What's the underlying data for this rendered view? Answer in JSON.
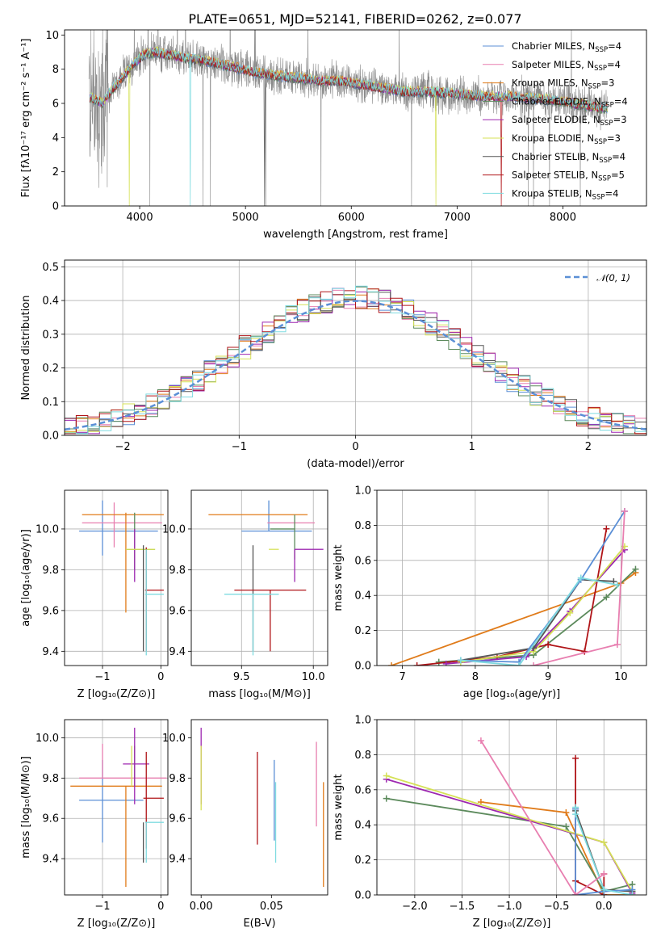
{
  "figure": {
    "title": "PLATE=0651, MJD=52141, FIBERID=0262, z=0.077"
  },
  "colors": {
    "chabrier_miles": "#5b8fd6",
    "salpeter_miles": "#e87fb0",
    "kroupa_miles": "#e07b1a",
    "chabrier_elodie": "#5c8a5c",
    "salpeter_elodie": "#9d27b0",
    "kroupa_elodie": "#d5e156",
    "chabrier_stelib": "#555555",
    "salpeter_stelib": "#b01418",
    "kroupa_stelib": "#7fdbe0",
    "data_gray": "#8a8a8a",
    "grid": "#b0b0b0",
    "normal_curve": "#5b8fd6"
  },
  "chart_data": [
    {
      "id": "spectrum",
      "type": "line",
      "title": "PLATE=0651, MJD=52141, FIBERID=0262, z=0.077",
      "xlabel": "wavelength [Angstrom, rest frame]",
      "ylabel": "Flux [fλ10⁻¹⁷ erg cm⁻² s⁻¹ A⁻¹]",
      "xlim": [
        3290,
        8790
      ],
      "ylim": [
        0,
        10.3
      ],
      "xticks": [
        4000,
        5000,
        6000,
        7000,
        8000
      ],
      "yticks": [
        0,
        2,
        4,
        6,
        8,
        10
      ],
      "grid": false,
      "legend_position": "top-right",
      "legend": [
        {
          "label": "Chabrier MILES, N",
          "sub": "SSP",
          "suffix": "=4",
          "color_key": "chabrier_miles"
        },
        {
          "label": "Salpeter MILES, N",
          "sub": "SSP",
          "suffix": "=4",
          "color_key": "salpeter_miles"
        },
        {
          "label": "Kroupa MILES, N",
          "sub": "SSP",
          "suffix": "=3",
          "color_key": "kroupa_miles"
        },
        {
          "label": "Chabrier ELODIE, N",
          "sub": "SSP",
          "suffix": "=4",
          "color_key": "chabrier_elodie"
        },
        {
          "label": "Salpeter ELODIE, N",
          "sub": "SSP",
          "suffix": "=3",
          "color_key": "salpeter_elodie"
        },
        {
          "label": "Kroupa ELODIE, N",
          "sub": "SSP",
          "suffix": "=3",
          "color_key": "kroupa_elodie"
        },
        {
          "label": "Chabrier STELIB, N",
          "sub": "SSP",
          "suffix": "=4",
          "color_key": "chabrier_stelib"
        },
        {
          "label": "Salpeter STELIB, N",
          "sub": "SSP",
          "suffix": "=5",
          "color_key": "salpeter_stelib"
        },
        {
          "label": "Kroupa STELIB, N",
          "sub": "SSP",
          "suffix": "=4",
          "color_key": "kroupa_stelib"
        }
      ],
      "model_continuum": {
        "x": [
          3550,
          3650,
          3750,
          3850,
          3950,
          4050,
          4150,
          4300,
          4500,
          4700,
          4900,
          5100,
          5300,
          5500,
          5700,
          5900,
          6100,
          6300,
          6500,
          6700,
          6900,
          7100,
          7300,
          7500,
          7700,
          7900,
          8100,
          8300,
          8420
        ],
        "y": [
          6.3,
          6.0,
          6.9,
          7.6,
          8.4,
          8.9,
          9.0,
          8.8,
          8.6,
          8.4,
          8.1,
          7.8,
          7.6,
          7.5,
          7.3,
          7.3,
          7.1,
          6.9,
          6.7,
          6.7,
          6.6,
          6.5,
          6.4,
          6.4,
          6.3,
          6.2,
          6.0,
          5.8,
          5.7
        ]
      },
      "noise_region": [
        3520,
        3700
      ]
    },
    {
      "id": "residuals",
      "type": "step",
      "xlabel": "(data-model)/error",
      "ylabel": "Normed distribution",
      "xlim": [
        -2.5,
        2.5
      ],
      "ylim": [
        0,
        0.52
      ],
      "xticks": [
        -2,
        -1,
        0,
        1,
        2
      ],
      "yticks": [
        0.0,
        0.1,
        0.2,
        0.3,
        0.4,
        0.5
      ],
      "grid": true,
      "legend_position": "top-right",
      "legend": [
        {
          "label": "𝒩(0, 1)",
          "color_key": "normal_curve",
          "style": "dashed"
        }
      ],
      "bin_width": 0.1,
      "bin_start": -2.5
    },
    {
      "id": "age_vs_z",
      "type": "errorbar",
      "xlabel": "Z [log₁₀(Z/Z⊙)]",
      "ylabel": "age  [log₁₀(age/yr)]",
      "xlim": [
        -1.65,
        0.12
      ],
      "ylim": [
        9.33,
        10.19
      ],
      "xticks": [
        -1,
        0
      ],
      "yticks": [
        9.4,
        9.6,
        9.8,
        10.0
      ],
      "grid": true,
      "points": [
        {
          "color_key": "chabrier_miles",
          "x": -1.0,
          "xerr": [
            0.4,
            0.95
          ],
          "y": 9.99,
          "yerr": [
            0.12,
            0.15
          ]
        },
        {
          "color_key": "salpeter_miles",
          "x": -0.8,
          "xerr": [
            0.55,
            0.82
          ],
          "y": 10.03,
          "yerr": [
            0.12,
            0.1
          ]
        },
        {
          "color_key": "kroupa_miles",
          "x": -0.6,
          "xerr": [
            0.75,
            0.65
          ],
          "y": 10.07,
          "yerr": [
            0.48,
            0.01
          ]
        },
        {
          "color_key": "chabrier_elodie",
          "x": -0.45,
          "xerr": [
            0.15,
            0.35
          ],
          "y": 9.9,
          "yerr": [
            0.1,
            0.18
          ]
        },
        {
          "color_key": "salpeter_elodie",
          "x": -0.45,
          "xerr": [
            0.0,
            0.0
          ],
          "y": 9.9,
          "yerr": [
            0.16,
            0.1
          ]
        },
        {
          "color_key": "kroupa_elodie",
          "x": -0.45,
          "xerr": [
            0.15,
            0.35
          ],
          "y": 9.9,
          "yerr": [
            0.0,
            0.0
          ]
        },
        {
          "color_key": "chabrier_stelib",
          "x": -0.3,
          "xerr": [
            0.0,
            0.0
          ],
          "y": 9.4,
          "yerr": [
            0.0,
            0.52
          ]
        },
        {
          "color_key": "salpeter_stelib",
          "x": -0.25,
          "xerr": [
            0.02,
            0.3
          ],
          "y": 9.7,
          "yerr": [
            0.3,
            0.21
          ]
        },
        {
          "color_key": "kroupa_stelib",
          "x": -0.25,
          "xerr": [
            0.02,
            0.3
          ],
          "y": 9.68,
          "yerr": [
            0.3,
            0.22
          ]
        }
      ]
    },
    {
      "id": "age_vs_mass",
      "type": "errorbar",
      "xlabel": "mass [log₁₀(M/M⊙)]",
      "ylabel": "",
      "xlim": [
        9.15,
        10.1
      ],
      "ylim": [
        9.33,
        10.19
      ],
      "xticks": [
        9.5,
        10.0
      ],
      "yticks": [
        9.4,
        9.6,
        9.8,
        10.0
      ],
      "grid": true,
      "points": [
        {
          "color_key": "chabrier_miles",
          "x": 9.69,
          "xerr": [
            0.19,
            0.3
          ],
          "y": 9.99,
          "yerr": [
            0.0,
            0.15
          ]
        },
        {
          "color_key": "salpeter_miles",
          "x": 9.81,
          "xerr": [
            0.13,
            0.2
          ],
          "y": 10.03,
          "yerr": [
            0.0,
            0.0
          ]
        },
        {
          "color_key": "kroupa_miles",
          "x": 9.76,
          "xerr": [
            0.49,
            0.2
          ],
          "y": 10.07,
          "yerr": [
            0.0,
            0.0
          ]
        },
        {
          "color_key": "chabrier_elodie",
          "x": 9.87,
          "xerr": [
            0.17,
            0.0
          ],
          "y": 10.0,
          "yerr": [
            0.15,
            0.07
          ]
        },
        {
          "color_key": "salpeter_elodie",
          "x": 9.87,
          "xerr": [
            0.0,
            0.2
          ],
          "y": 9.9,
          "yerr": [
            0.16,
            0.0
          ]
        },
        {
          "color_key": "kroupa_elodie",
          "x": 9.76,
          "xerr": [
            0.07,
            0.0
          ],
          "y": 9.9,
          "yerr": [
            0.0,
            0.0
          ]
        },
        {
          "color_key": "chabrier_stelib",
          "x": 9.58,
          "xerr": [
            0.0,
            0.0
          ],
          "y": 9.4,
          "yerr": [
            0.0,
            0.52
          ]
        },
        {
          "color_key": "salpeter_stelib",
          "x": 9.7,
          "xerr": [
            0.25,
            0.25
          ],
          "y": 9.7,
          "yerr": [
            0.3,
            0.0
          ]
        },
        {
          "color_key": "kroupa_stelib",
          "x": 9.58,
          "xerr": [
            0.2,
            0.18
          ],
          "y": 9.68,
          "yerr": [
            0.3,
            0.0
          ]
        }
      ]
    },
    {
      "id": "mass_weight_vs_age",
      "type": "line",
      "xlabel": "age  [log₁₀(age/yr)]",
      "ylabel": "mass weight",
      "xlim": [
        6.65,
        10.35
      ],
      "ylim": [
        0,
        1.0
      ],
      "xticks": [
        7,
        8,
        9,
        10
      ],
      "yticks": [
        0.0,
        0.2,
        0.4,
        0.6,
        0.8,
        1.0
      ],
      "grid": true,
      "series": [
        {
          "color_key": "kroupa_miles",
          "x": [
            6.85,
            10.0,
            10.2
          ],
          "y": [
            0.0,
            0.47,
            0.53
          ]
        },
        {
          "color_key": "chabrier_elodie",
          "x": [
            7.5,
            8.8,
            9.8,
            10.2
          ],
          "y": [
            0.02,
            0.06,
            0.39,
            0.55
          ]
        },
        {
          "color_key": "salpeter_stelib",
          "x": [
            7.2,
            8.3,
            9.0,
            9.5,
            9.8
          ],
          "y": [
            0.0,
            0.05,
            0.12,
            0.08,
            0.78
          ]
        },
        {
          "color_key": "salpeter_elodie",
          "x": [
            7.6,
            8.7,
            9.3,
            10.05
          ],
          "y": [
            0.01,
            0.05,
            0.31,
            0.66
          ]
        },
        {
          "color_key": "kroupa_elodie",
          "x": [
            7.8,
            8.8,
            9.3,
            10.05
          ],
          "y": [
            0.02,
            0.08,
            0.3,
            0.68
          ]
        },
        {
          "color_key": "chabrier_stelib",
          "x": [
            7.8,
            8.8,
            9.45,
            9.9
          ],
          "y": [
            0.03,
            0.1,
            0.49,
            0.48
          ]
        },
        {
          "color_key": "chabrier_miles",
          "x": [
            7.8,
            8.6,
            9.45,
            10.05
          ],
          "y": [
            0.03,
            0.02,
            0.49,
            0.88
          ]
        },
        {
          "color_key": "kroupa_stelib",
          "x": [
            7.8,
            8.6,
            9.45,
            9.95
          ],
          "y": [
            0.03,
            0.0,
            0.5,
            0.46
          ]
        },
        {
          "color_key": "salpeter_miles",
          "x": [
            8.8,
            9.95,
            10.05
          ],
          "y": [
            0.0,
            0.12,
            0.88
          ]
        }
      ]
    },
    {
      "id": "mass_vs_z",
      "type": "errorbar",
      "xlabel": "Z [log₁₀(Z/Z⊙)]",
      "ylabel": "mass [log₁₀(M/M⊙)]",
      "xlim": [
        -1.65,
        0.12
      ],
      "ylim": [
        9.22,
        10.09
      ],
      "xticks": [
        -1,
        0
      ],
      "yticks": [
        9.4,
        9.6,
        9.8,
        10.0
      ],
      "grid": true,
      "points": [
        {
          "color_key": "chabrier_miles",
          "x": -1.0,
          "xerr": [
            0.4,
            0.7
          ],
          "y": 9.69,
          "yerr": [
            0.21,
            0.2
          ]
        },
        {
          "color_key": "salpeter_miles",
          "x": -1.0,
          "xerr": [
            0.4,
            1.1
          ],
          "y": 9.8,
          "yerr": [
            0.0,
            0.17
          ]
        },
        {
          "color_key": "kroupa_miles",
          "x": -0.6,
          "xerr": [
            0.95,
            0.62
          ],
          "y": 9.76,
          "yerr": [
            0.5,
            0.0
          ]
        },
        {
          "color_key": "chabrier_elodie",
          "x": -0.45,
          "xerr": [
            0.0,
            0.0
          ],
          "y": 9.76,
          "yerr": [
            0.0,
            0.2
          ]
        },
        {
          "color_key": "salpeter_elodie",
          "x": -0.45,
          "xerr": [
            0.2,
            0.25
          ],
          "y": 9.87,
          "yerr": [
            0.2,
            0.18
          ]
        },
        {
          "color_key": "kroupa_elodie",
          "x": -0.5,
          "xerr": [
            0.0,
            0.0
          ],
          "y": 9.76,
          "yerr": [
            0.0,
            0.2
          ]
        },
        {
          "color_key": "chabrier_stelib",
          "x": -0.3,
          "xerr": [
            0.0,
            0.0
          ],
          "y": 9.58,
          "yerr": [
            0.2,
            0.0
          ]
        },
        {
          "color_key": "salpeter_stelib",
          "x": -0.25,
          "xerr": [
            0.05,
            0.3
          ],
          "y": 9.7,
          "yerr": [
            0.25,
            0.23
          ]
        },
        {
          "color_key": "kroupa_stelib",
          "x": -0.25,
          "xerr": [
            0.02,
            0.3
          ],
          "y": 9.58,
          "yerr": [
            0.2,
            0.0
          ]
        }
      ]
    },
    {
      "id": "mass_vs_ebv",
      "type": "errorbar",
      "xlabel": "E(B-V)",
      "ylabel": "",
      "xlim": [
        -0.007,
        0.09
      ],
      "ylim": [
        9.22,
        10.09
      ],
      "xticks": [
        0.0,
        0.05
      ],
      "yticks": [
        9.4,
        9.6,
        9.8,
        10.0
      ],
      "grid": false,
      "points": [
        {
          "color_key": "salpeter_elodie",
          "x": 0.0,
          "xerr": [
            0,
            0
          ],
          "y": 9.87,
          "yerr": [
            0.2,
            0.18
          ]
        },
        {
          "color_key": "kroupa_elodie",
          "x": 0.0,
          "xerr": [
            0,
            0
          ],
          "y": 9.8,
          "yerr": [
            0.16,
            0.16
          ]
        },
        {
          "color_key": "salpeter_stelib",
          "x": 0.04,
          "xerr": [
            0,
            0
          ],
          "y": 9.7,
          "yerr": [
            0.23,
            0.23
          ]
        },
        {
          "color_key": "chabrier_miles",
          "x": 0.052,
          "xerr": [
            0,
            0
          ],
          "y": 9.69,
          "yerr": [
            0.2,
            0.2
          ]
        },
        {
          "color_key": "kroupa_stelib",
          "x": 0.053,
          "xerr": [
            0,
            0
          ],
          "y": 9.58,
          "yerr": [
            0.2,
            0.2
          ]
        },
        {
          "color_key": "salpeter_miles",
          "x": 0.082,
          "xerr": [
            0,
            0
          ],
          "y": 9.77,
          "yerr": [
            0.21,
            0.21
          ]
        },
        {
          "color_key": "kroupa_miles",
          "x": 0.087,
          "xerr": [
            0,
            0
          ],
          "y": 9.52,
          "yerr": [
            0.26,
            0.26
          ]
        }
      ]
    },
    {
      "id": "mass_weight_vs_z",
      "type": "line",
      "xlabel": "Z [log₁₀(Z/Z⊙)]",
      "ylabel": "mass weight",
      "xlim": [
        -2.4,
        0.45
      ],
      "ylim": [
        0,
        1.0
      ],
      "xticks": [
        -2.0,
        -1.5,
        -1.0,
        -0.5,
        0.0
      ],
      "yticks": [
        0.0,
        0.2,
        0.4,
        0.6,
        0.8,
        1.0
      ],
      "grid": true,
      "series": [
        {
          "color_key": "kroupa_miles",
          "x": [
            -1.3,
            -0.4,
            0.0,
            0.3
          ],
          "y": [
            0.53,
            0.47,
            0.0,
            0.0
          ]
        },
        {
          "color_key": "chabrier_elodie",
          "x": [
            -2.3,
            -0.4,
            0.0,
            0.3
          ],
          "y": [
            0.55,
            0.39,
            0.02,
            0.06
          ]
        },
        {
          "color_key": "salpeter_elodie",
          "x": [
            -2.3,
            0.0,
            0.3
          ],
          "y": [
            0.66,
            0.3,
            0.01
          ]
        },
        {
          "color_key": "kroupa_elodie",
          "x": [
            -2.3,
            0.0,
            0.3
          ],
          "y": [
            0.68,
            0.3,
            0.02
          ]
        },
        {
          "color_key": "salpeter_stelib",
          "x": [
            -0.3,
            -0.3,
            0.0,
            0.0
          ],
          "y": [
            0.78,
            0.08,
            0.0,
            0.12
          ]
        },
        {
          "color_key": "chabrier_stelib",
          "x": [
            -0.3,
            -0.3,
            0.0,
            0.3
          ],
          "y": [
            0.49,
            0.48,
            0.03,
            0.02
          ]
        },
        {
          "color_key": "chabrier_miles",
          "x": [
            -0.3,
            -0.3,
            0.0,
            0.3
          ],
          "y": [
            0.49,
            0.0,
            0.02,
            0.03
          ]
        },
        {
          "color_key": "kroupa_stelib",
          "x": [
            -0.3,
            -0.3,
            0.0,
            0.3
          ],
          "y": [
            0.5,
            0.46,
            0.03,
            0.0
          ]
        },
        {
          "color_key": "salpeter_miles",
          "x": [
            -1.3,
            -0.3,
            0.0
          ],
          "y": [
            0.88,
            0.0,
            0.12
          ]
        }
      ]
    }
  ]
}
